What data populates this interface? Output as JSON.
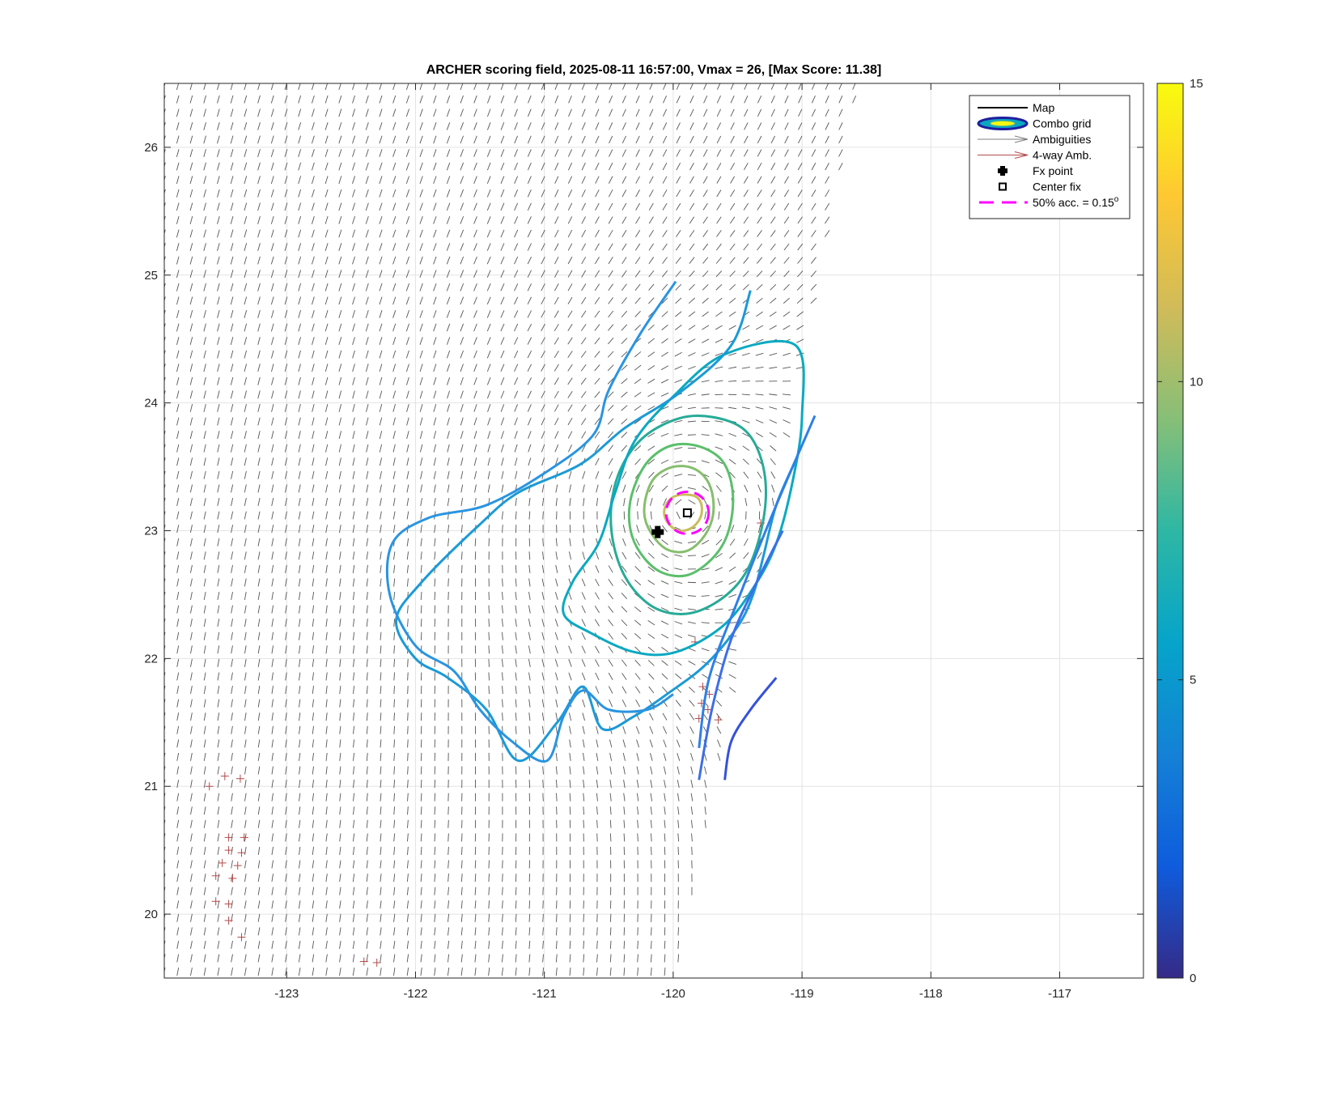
{
  "chart_data": {
    "type": "contour",
    "title": "ARCHER scoring field, 2025-08-11 16:57:00, Vmax = 26, [Max Score: 11.38]",
    "xlabel": "",
    "ylabel": "",
    "xlim": [
      -123.95,
      -116.35
    ],
    "ylim": [
      19.5,
      26.5
    ],
    "x_ticks": [
      -123,
      -122,
      -121,
      -120,
      -119,
      -118,
      -117
    ],
    "x_tick_labels": [
      "-123",
      "-122",
      "-121",
      "-120",
      "-119",
      "-118",
      "-117"
    ],
    "y_ticks": [
      20,
      21,
      22,
      23,
      24,
      25,
      26
    ],
    "y_tick_labels": [
      "20",
      "21",
      "22",
      "23",
      "24",
      "25",
      "26"
    ],
    "grid": true,
    "legend_position": "top-right",
    "legend": [
      {
        "label": "Map",
        "style": "line",
        "color": "#000000"
      },
      {
        "label": "Combo grid",
        "style": "contour-ellipse",
        "color": "#1f1f9e"
      },
      {
        "label": "Ambiguities",
        "style": "arrow",
        "color": "#7f7f7f"
      },
      {
        "label": "4-way Amb.",
        "style": "arrow",
        "color": "#b34a4a"
      },
      {
        "label": "Fx point",
        "style": "filled-plus",
        "color": "#000000"
      },
      {
        "label": "Center fix",
        "style": "square",
        "color": "#000000"
      },
      {
        "label": "50% acc. = 0.15",
        "superscript": "o",
        "style": "dashed-line",
        "color": "#ff00ff"
      }
    ],
    "colorbar": {
      "min": 0,
      "max": 15,
      "ticks": [
        0,
        5,
        10,
        15
      ],
      "tick_labels": [
        "0",
        "5",
        "10",
        "15"
      ],
      "colors": [
        "#352a87",
        "#0f5cdd",
        "#1481d6",
        "#06a4ca",
        "#2eb7a4",
        "#87bf77",
        "#d1bb59",
        "#fec832",
        "#f9fb0e"
      ]
    },
    "vortex_center": {
      "lon": -119.9,
      "lat": 23.15
    },
    "fx_point": {
      "lon": -120.12,
      "lat": 22.99
    },
    "center_fix": {
      "lon": -119.89,
      "lat": 23.14
    },
    "accuracy_circle": {
      "lon": -119.89,
      "lat": 23.14,
      "radius_deg": 0.15
    },
    "contours": [
      {
        "level": 11,
        "color": "#c9bd5b",
        "points": [
          [
            -119.95,
            23.28
          ],
          [
            -119.83,
            23.27
          ],
          [
            -119.78,
            23.2
          ],
          [
            -119.79,
            23.1
          ],
          [
            -119.86,
            23.02
          ],
          [
            -119.96,
            23.0
          ],
          [
            -120.04,
            23.06
          ],
          [
            -120.07,
            23.15
          ],
          [
            -120.03,
            23.24
          ]
        ]
      },
      {
        "level": 10,
        "color": "#86be6d",
        "points": [
          [
            -120.0,
            23.5
          ],
          [
            -119.85,
            23.49
          ],
          [
            -119.74,
            23.4
          ],
          [
            -119.69,
            23.25
          ],
          [
            -119.7,
            23.08
          ],
          [
            -119.78,
            22.93
          ],
          [
            -119.9,
            22.84
          ],
          [
            -120.04,
            22.85
          ],
          [
            -120.15,
            22.95
          ],
          [
            -120.22,
            23.1
          ],
          [
            -120.21,
            23.27
          ],
          [
            -120.14,
            23.42
          ]
        ]
      },
      {
        "level": 9,
        "color": "#5bbf6b",
        "points": [
          [
            -120.0,
            23.67
          ],
          [
            -119.8,
            23.66
          ],
          [
            -119.63,
            23.56
          ],
          [
            -119.55,
            23.38
          ],
          [
            -119.54,
            23.15
          ],
          [
            -119.6,
            22.92
          ],
          [
            -119.73,
            22.75
          ],
          [
            -119.9,
            22.65
          ],
          [
            -120.08,
            22.67
          ],
          [
            -120.22,
            22.78
          ],
          [
            -120.32,
            22.96
          ],
          [
            -120.34,
            23.18
          ],
          [
            -120.28,
            23.4
          ],
          [
            -120.17,
            23.57
          ]
        ]
      },
      {
        "level": 8,
        "color": "#27ab97",
        "points": [
          [
            -119.95,
            23.88
          ],
          [
            -119.7,
            23.89
          ],
          [
            -119.46,
            23.8
          ],
          [
            -119.33,
            23.6
          ],
          [
            -119.28,
            23.3
          ],
          [
            -119.33,
            22.95
          ],
          [
            -119.45,
            22.65
          ],
          [
            -119.65,
            22.45
          ],
          [
            -119.9,
            22.35
          ],
          [
            -120.15,
            22.4
          ],
          [
            -120.35,
            22.6
          ],
          [
            -120.46,
            22.88
          ],
          [
            -120.48,
            23.2
          ],
          [
            -120.4,
            23.5
          ],
          [
            -120.22,
            23.74
          ]
        ]
      },
      {
        "level": 7,
        "color": "#0aa9c1",
        "points": [
          [
            -119.6,
            24.38
          ],
          [
            -119.05,
            24.45
          ],
          [
            -119.0,
            23.9
          ],
          [
            -119.07,
            23.4
          ],
          [
            -119.2,
            22.9
          ],
          [
            -119.38,
            22.55
          ],
          [
            -119.62,
            22.25
          ],
          [
            -119.98,
            22.05
          ],
          [
            -120.3,
            22.05
          ],
          [
            -120.64,
            22.2
          ],
          [
            -120.85,
            22.35
          ],
          [
            -120.78,
            22.6
          ],
          [
            -120.58,
            22.9
          ],
          [
            -120.45,
            23.3
          ],
          [
            -120.3,
            23.7
          ],
          [
            -120.0,
            24.05
          ]
        ]
      },
      {
        "level": 6,
        "color": "#1b9ad6",
        "points": [
          [
            -119.4,
            24.88
          ],
          [
            -119.55,
            24.45
          ],
          [
            -119.95,
            24.08
          ],
          [
            -120.38,
            23.8
          ],
          [
            -120.72,
            23.52
          ],
          [
            -121.2,
            23.3
          ],
          [
            -121.5,
            23.05
          ],
          [
            -121.95,
            22.6
          ],
          [
            -122.15,
            22.3
          ],
          [
            -122.0,
            22.0
          ],
          [
            -121.75,
            21.85
          ],
          [
            -121.45,
            21.6
          ],
          [
            -121.2,
            21.2
          ],
          [
            -120.9,
            21.5
          ],
          [
            -120.7,
            21.78
          ],
          [
            -120.55,
            21.45
          ],
          [
            -120.3,
            21.55
          ],
          [
            -120.05,
            21.72
          ],
          [
            -119.75,
            21.95
          ],
          [
            -119.5,
            22.25
          ],
          [
            -119.38,
            22.5
          ],
          [
            -119.3,
            22.8
          ],
          [
            -119.2,
            23.2
          ],
          [
            -119.05,
            23.55
          ]
        ]
      },
      {
        "level": 5.5,
        "color": "#2a94e0",
        "points": [
          [
            -119.98,
            24.95
          ],
          [
            -120.25,
            24.55
          ],
          [
            -120.5,
            24.1
          ],
          [
            -120.62,
            23.75
          ],
          [
            -121.0,
            23.45
          ],
          [
            -121.45,
            23.2
          ],
          [
            -121.9,
            23.1
          ],
          [
            -122.18,
            22.9
          ],
          [
            -122.2,
            22.5
          ],
          [
            -122.0,
            22.1
          ],
          [
            -121.7,
            21.9
          ],
          [
            -121.5,
            21.6
          ],
          [
            -121.25,
            21.35
          ],
          [
            -120.98,
            21.2
          ],
          [
            -120.85,
            21.55
          ],
          [
            -120.7,
            21.75
          ],
          [
            -120.5,
            21.6
          ],
          [
            -120.2,
            21.6
          ],
          [
            -120.0,
            21.72
          ]
        ]
      },
      {
        "level": 5,
        "color": "#2f7fe6",
        "points": [
          [
            -118.9,
            23.9
          ],
          [
            -119.2,
            23.2
          ],
          [
            -119.5,
            22.45
          ],
          [
            -119.72,
            21.85
          ],
          [
            -119.8,
            21.3
          ]
        ]
      },
      {
        "level": 4.5,
        "color": "#3d6ee8",
        "points": [
          [
            -119.15,
            23.0
          ],
          [
            -119.35,
            22.6
          ],
          [
            -119.55,
            22.15
          ],
          [
            -119.7,
            21.6
          ],
          [
            -119.8,
            21.05
          ]
        ]
      },
      {
        "level": 4,
        "color": "#3552d9",
        "points": [
          [
            -119.2,
            21.85
          ],
          [
            -119.4,
            21.6
          ],
          [
            -119.55,
            21.35
          ],
          [
            -119.6,
            21.05
          ]
        ]
      }
    ]
  }
}
